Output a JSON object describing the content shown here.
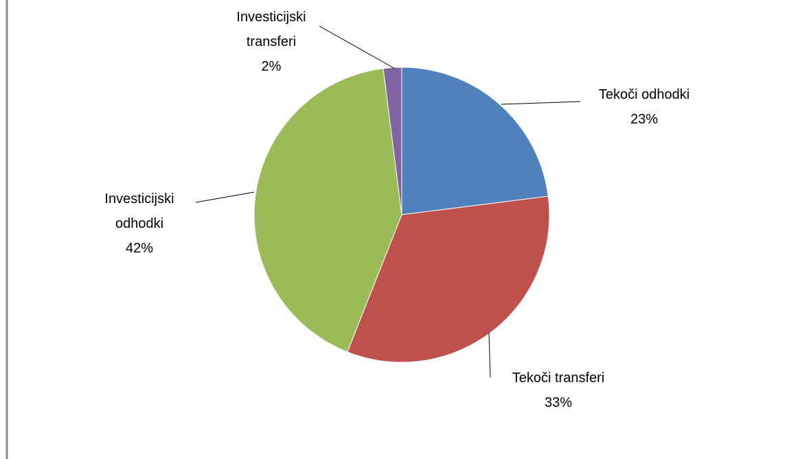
{
  "chart_data": {
    "type": "pie",
    "categories": [
      "Tekoči odhodki",
      "Tekoči transferi",
      "Investicijski odhodki",
      "Investicijski transferi"
    ],
    "values": [
      23,
      33,
      42,
      2
    ],
    "value_labels": [
      "23%",
      "33%",
      "42%",
      "2%"
    ],
    "colors": [
      "#4f81bd",
      "#c0504d",
      "#9bbb59",
      "#8064a2"
    ]
  }
}
